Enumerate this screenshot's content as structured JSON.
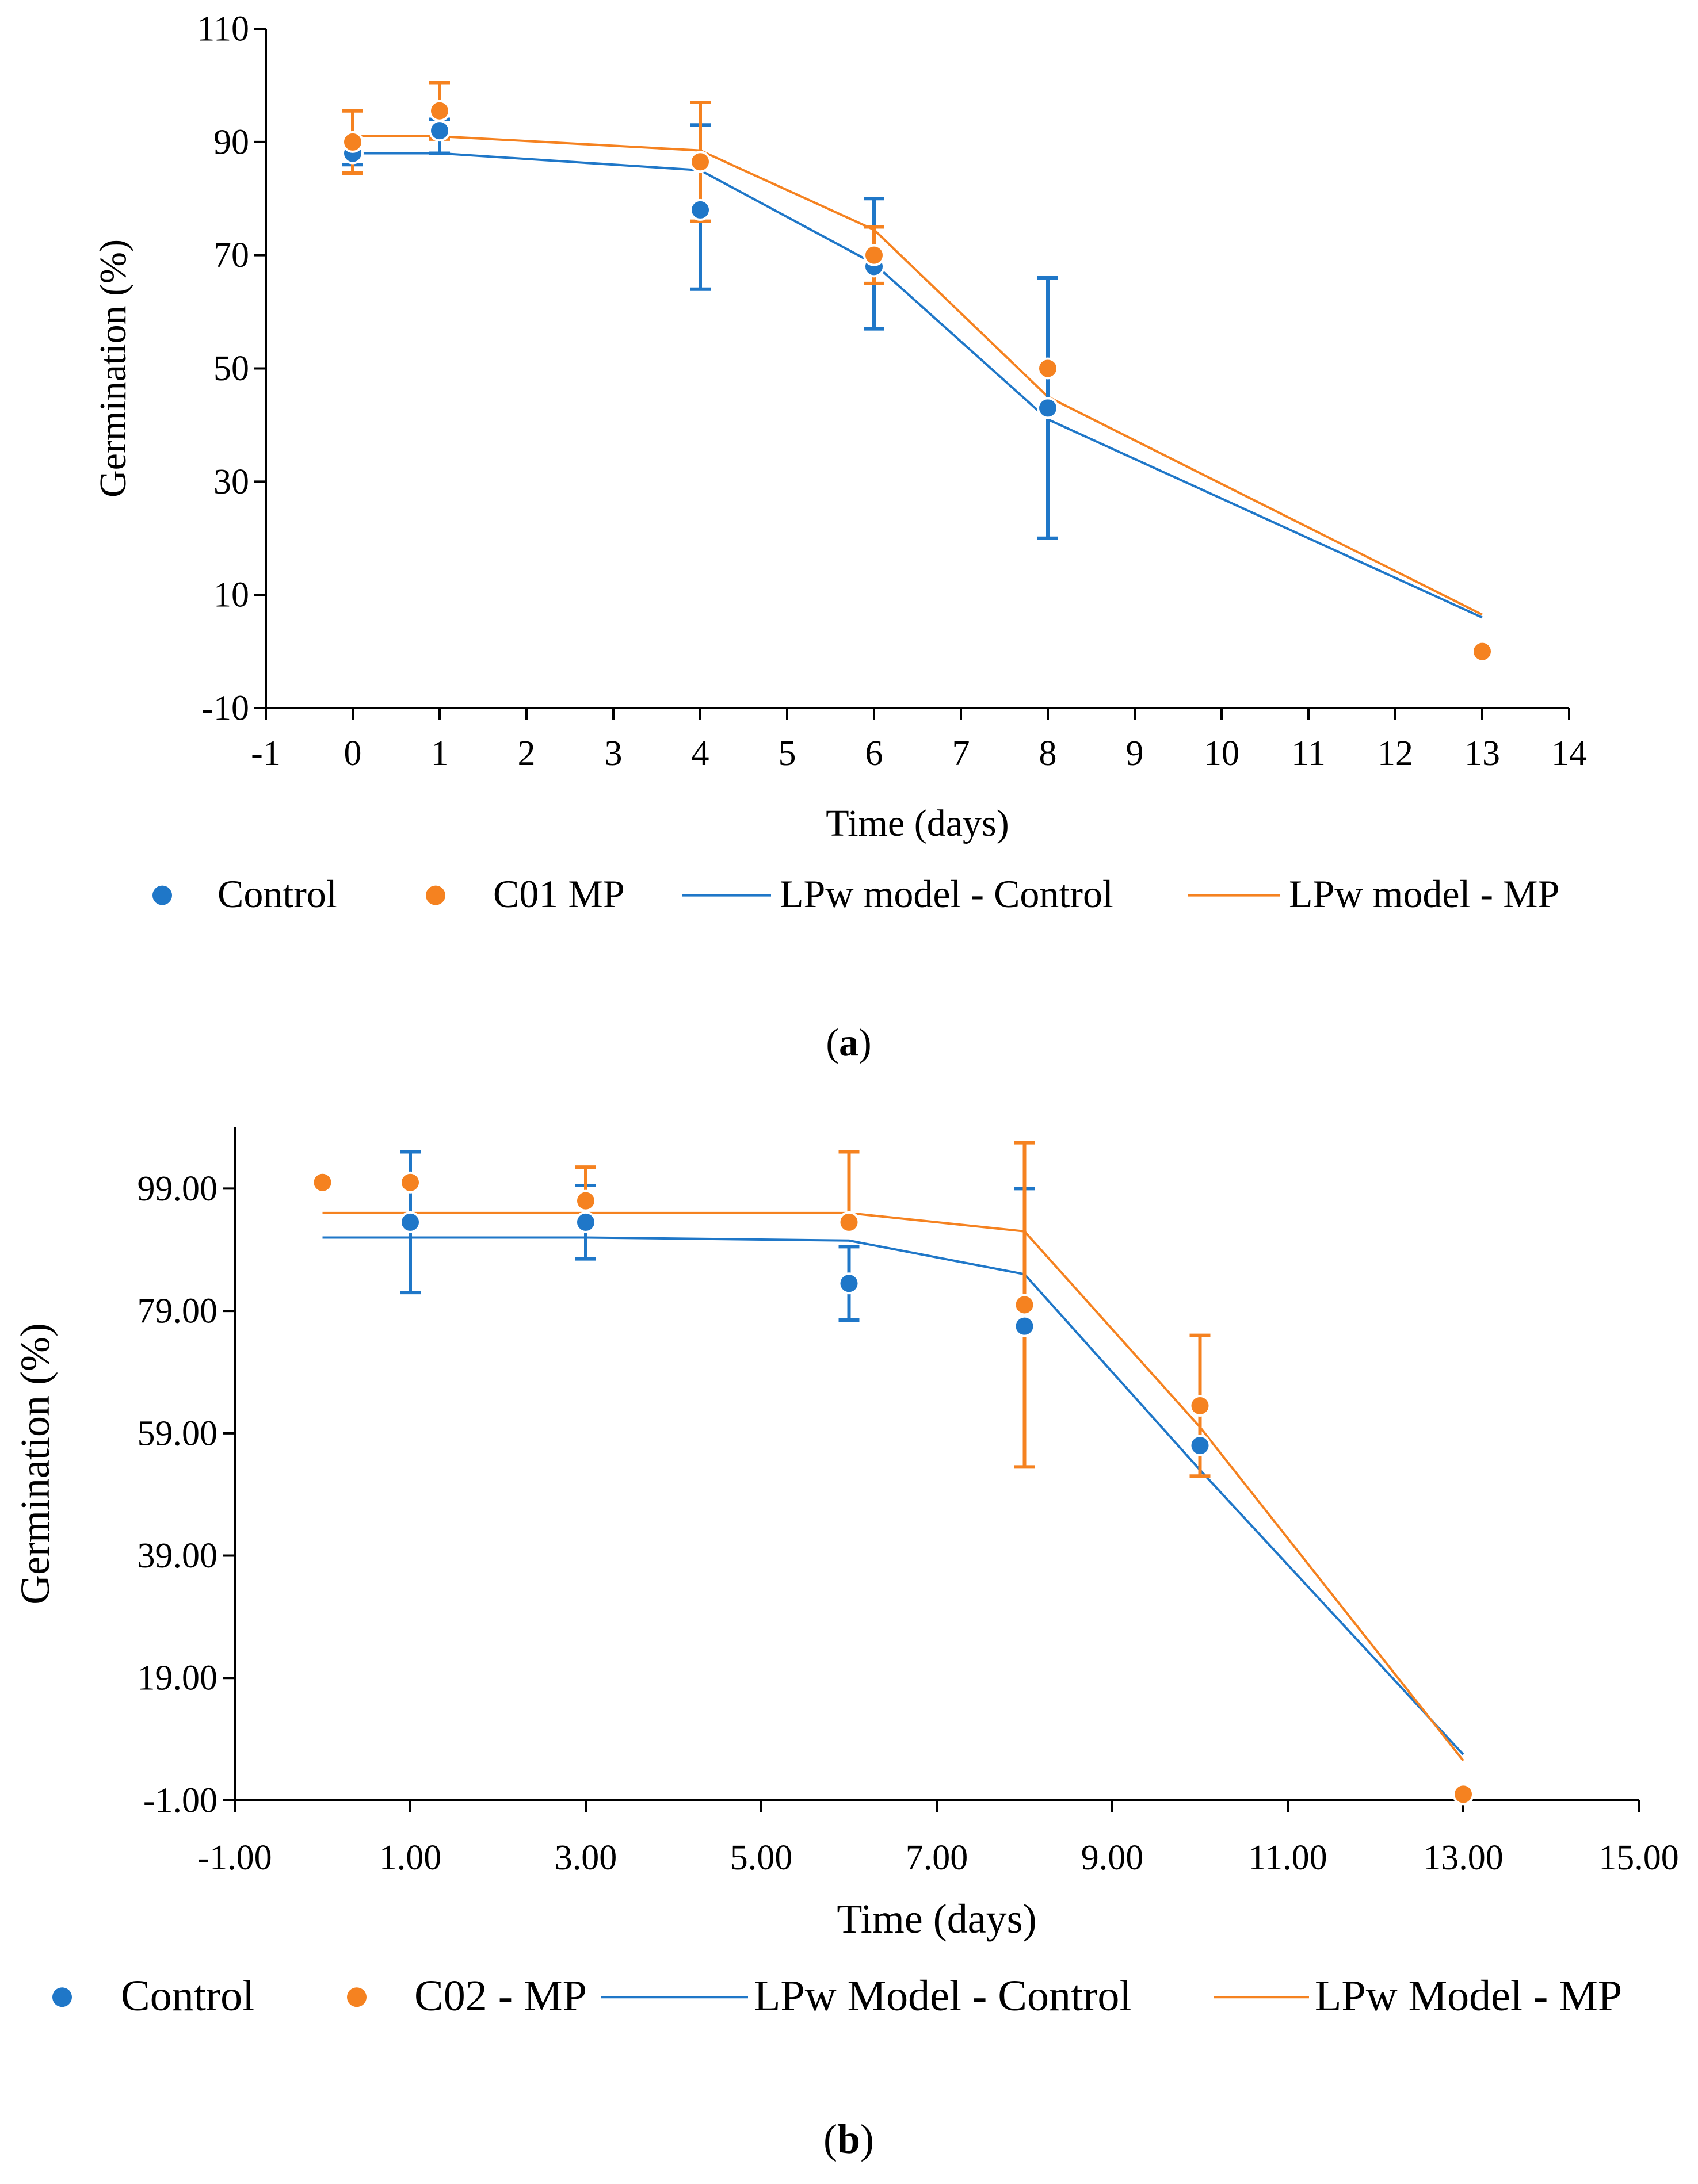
{
  "chart_data": [
    {
      "type": "scatter",
      "panel": "a",
      "caption_letter": "a",
      "xlabel": "Time (days)",
      "ylabel": "Germination (%)",
      "xlim": [
        -1,
        14
      ],
      "ylim": [
        -10,
        110
      ],
      "x_ticks": [
        -1,
        0,
        1,
        2,
        3,
        4,
        5,
        6,
        7,
        8,
        9,
        10,
        11,
        12,
        13,
        14
      ],
      "x_tick_labels": [
        "-1",
        "0",
        "1",
        "2",
        "3",
        "4",
        "5",
        "6",
        "7",
        "8",
        "9",
        "10",
        "11",
        "12",
        "13",
        "14"
      ],
      "y_ticks": [
        -10,
        10,
        30,
        50,
        70,
        90,
        110
      ],
      "y_tick_labels": [
        "-10",
        "10",
        "30",
        "50",
        "70",
        "90",
        "110"
      ],
      "colors": {
        "blue": "#1f77c8",
        "orange": "#f58220"
      },
      "series": [
        {
          "name": "Control",
          "kind": "points",
          "color": "blue",
          "x": [
            0,
            1,
            4,
            6,
            8
          ],
          "y": [
            88,
            92,
            78,
            68,
            43
          ],
          "err_low": [
            86,
            88,
            64,
            57,
            20
          ],
          "err_high": [
            90,
            94,
            93,
            80,
            66
          ]
        },
        {
          "name": "C01 MP",
          "kind": "points",
          "color": "orange",
          "x": [
            0,
            1,
            4,
            6,
            8,
            13
          ],
          "y": [
            90,
            95.5,
            86.5,
            70,
            50,
            0
          ],
          "err_low": [
            84.5,
            90.5,
            76,
            65,
            null,
            null
          ],
          "err_high": [
            95.5,
            100.5,
            97,
            75,
            null,
            null
          ]
        },
        {
          "name": "LPw model - Control",
          "kind": "line",
          "color": "blue",
          "x": [
            0,
            1,
            4,
            6,
            8,
            13
          ],
          "y": [
            88,
            88,
            85,
            68.5,
            41,
            6
          ]
        },
        {
          "name": "LPw model - MP",
          "kind": "line",
          "color": "orange",
          "x": [
            0,
            1,
            4,
            6,
            8,
            13
          ],
          "y": [
            91,
            91,
            88.5,
            74.5,
            45,
            6.5
          ]
        }
      ],
      "legend": [
        "Control",
        "C01 MP",
        "LPw model - Control",
        "LPw model - MP"
      ]
    },
    {
      "type": "scatter",
      "panel": "b",
      "caption_letter": "b",
      "xlabel": "Time (days)",
      "ylabel": "Germination (%)",
      "xlim": [
        -1,
        15
      ],
      "ylim": [
        -1,
        109
      ],
      "x_ticks": [
        -1,
        1,
        3,
        5,
        7,
        9,
        11,
        13,
        15
      ],
      "x_tick_labels": [
        "-1.00",
        "1.00",
        "3.00",
        "5.00",
        "7.00",
        "9.00",
        "11.00",
        "13.00",
        "15.00"
      ],
      "y_ticks": [
        -1,
        19,
        39,
        59,
        79,
        99
      ],
      "y_tick_labels": [
        "-1.00",
        "19.00",
        "39.00",
        "59.00",
        "79.00",
        "99.00"
      ],
      "colors": {
        "blue": "#1f77c8",
        "orange": "#f58220"
      },
      "series": [
        {
          "name": "Control",
          "kind": "points",
          "color": "blue",
          "x": [
            1,
            3,
            6,
            8,
            10
          ],
          "y": [
            93.5,
            93.5,
            83.5,
            76.5,
            57
          ],
          "err_low": [
            82,
            87.5,
            77.5,
            null,
            null
          ],
          "err_high": [
            105,
            99.5,
            89.5,
            99,
            null
          ]
        },
        {
          "name": "C02 - MP",
          "kind": "points",
          "color": "orange",
          "x": [
            0,
            1,
            3,
            6,
            8,
            10,
            13
          ],
          "y": [
            100,
            100,
            97,
            93.5,
            80,
            63.5,
            0
          ],
          "err_low": [
            null,
            null,
            null,
            null,
            53.5,
            52,
            null
          ],
          "err_high": [
            null,
            null,
            102.5,
            105,
            106.5,
            75,
            null
          ]
        },
        {
          "name": "LPw Model - Control",
          "kind": "line",
          "color": "blue",
          "x": [
            0,
            1,
            3,
            6,
            8,
            10,
            13
          ],
          "y": [
            91,
            91,
            91,
            90.5,
            85,
            53,
            6.5
          ]
        },
        {
          "name": "LPw Model - MP",
          "kind": "line",
          "color": "orange",
          "x": [
            0,
            1,
            3,
            6,
            8,
            10,
            13
          ],
          "y": [
            95,
            95,
            95,
            95,
            92,
            60,
            5.5
          ]
        }
      ],
      "legend": [
        "Control",
        "C02 - MP",
        "LPw Model - Control",
        "LPw Model - MP"
      ]
    }
  ]
}
